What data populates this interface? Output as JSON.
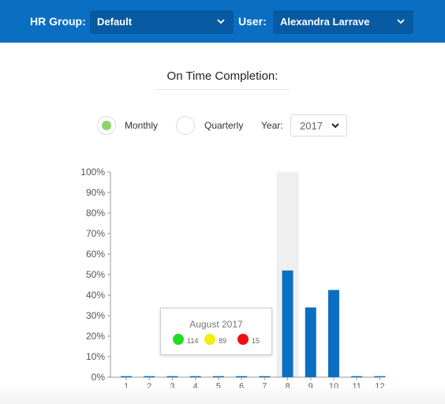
{
  "header": {
    "hr_group_label": "HR Group:",
    "hr_group_value": "Default",
    "user_label": "User:",
    "user_value": "Alexandra Larrave"
  },
  "title": "On Time Completion:",
  "period": {
    "monthly_label": "Monthly",
    "quarterly_label": "Quarterly",
    "selected": "Monthly",
    "year_label": "Year:",
    "year_value": "2017"
  },
  "colors": {
    "header_bg": "#0a6fc2",
    "bar": "#0a6fc2",
    "radio_selected": "#8fd26a",
    "status_green": "#22dd22",
    "status_yellow": "#eeee11",
    "status_red": "#ee1111"
  },
  "tooltip": {
    "title": "August 2017",
    "green_count": "114",
    "yellow_count": "89",
    "red_count": "15"
  },
  "chart_data": {
    "type": "bar",
    "categories": [
      "1",
      "2",
      "3",
      "4",
      "5",
      "6",
      "7",
      "8",
      "9",
      "10",
      "11",
      "12"
    ],
    "values": [
      0.5,
      0.5,
      0.5,
      0.5,
      0.5,
      0.5,
      0.5,
      52,
      34,
      42.5,
      0.5,
      0.5
    ],
    "yticks": [
      "0%",
      "10%",
      "20%",
      "30%",
      "40%",
      "50%",
      "60%",
      "70%",
      "80%",
      "90%",
      "100%"
    ],
    "ylim": [
      0,
      100
    ],
    "highlighted_category": "8",
    "title": "",
    "xlabel": "",
    "ylabel": ""
  }
}
